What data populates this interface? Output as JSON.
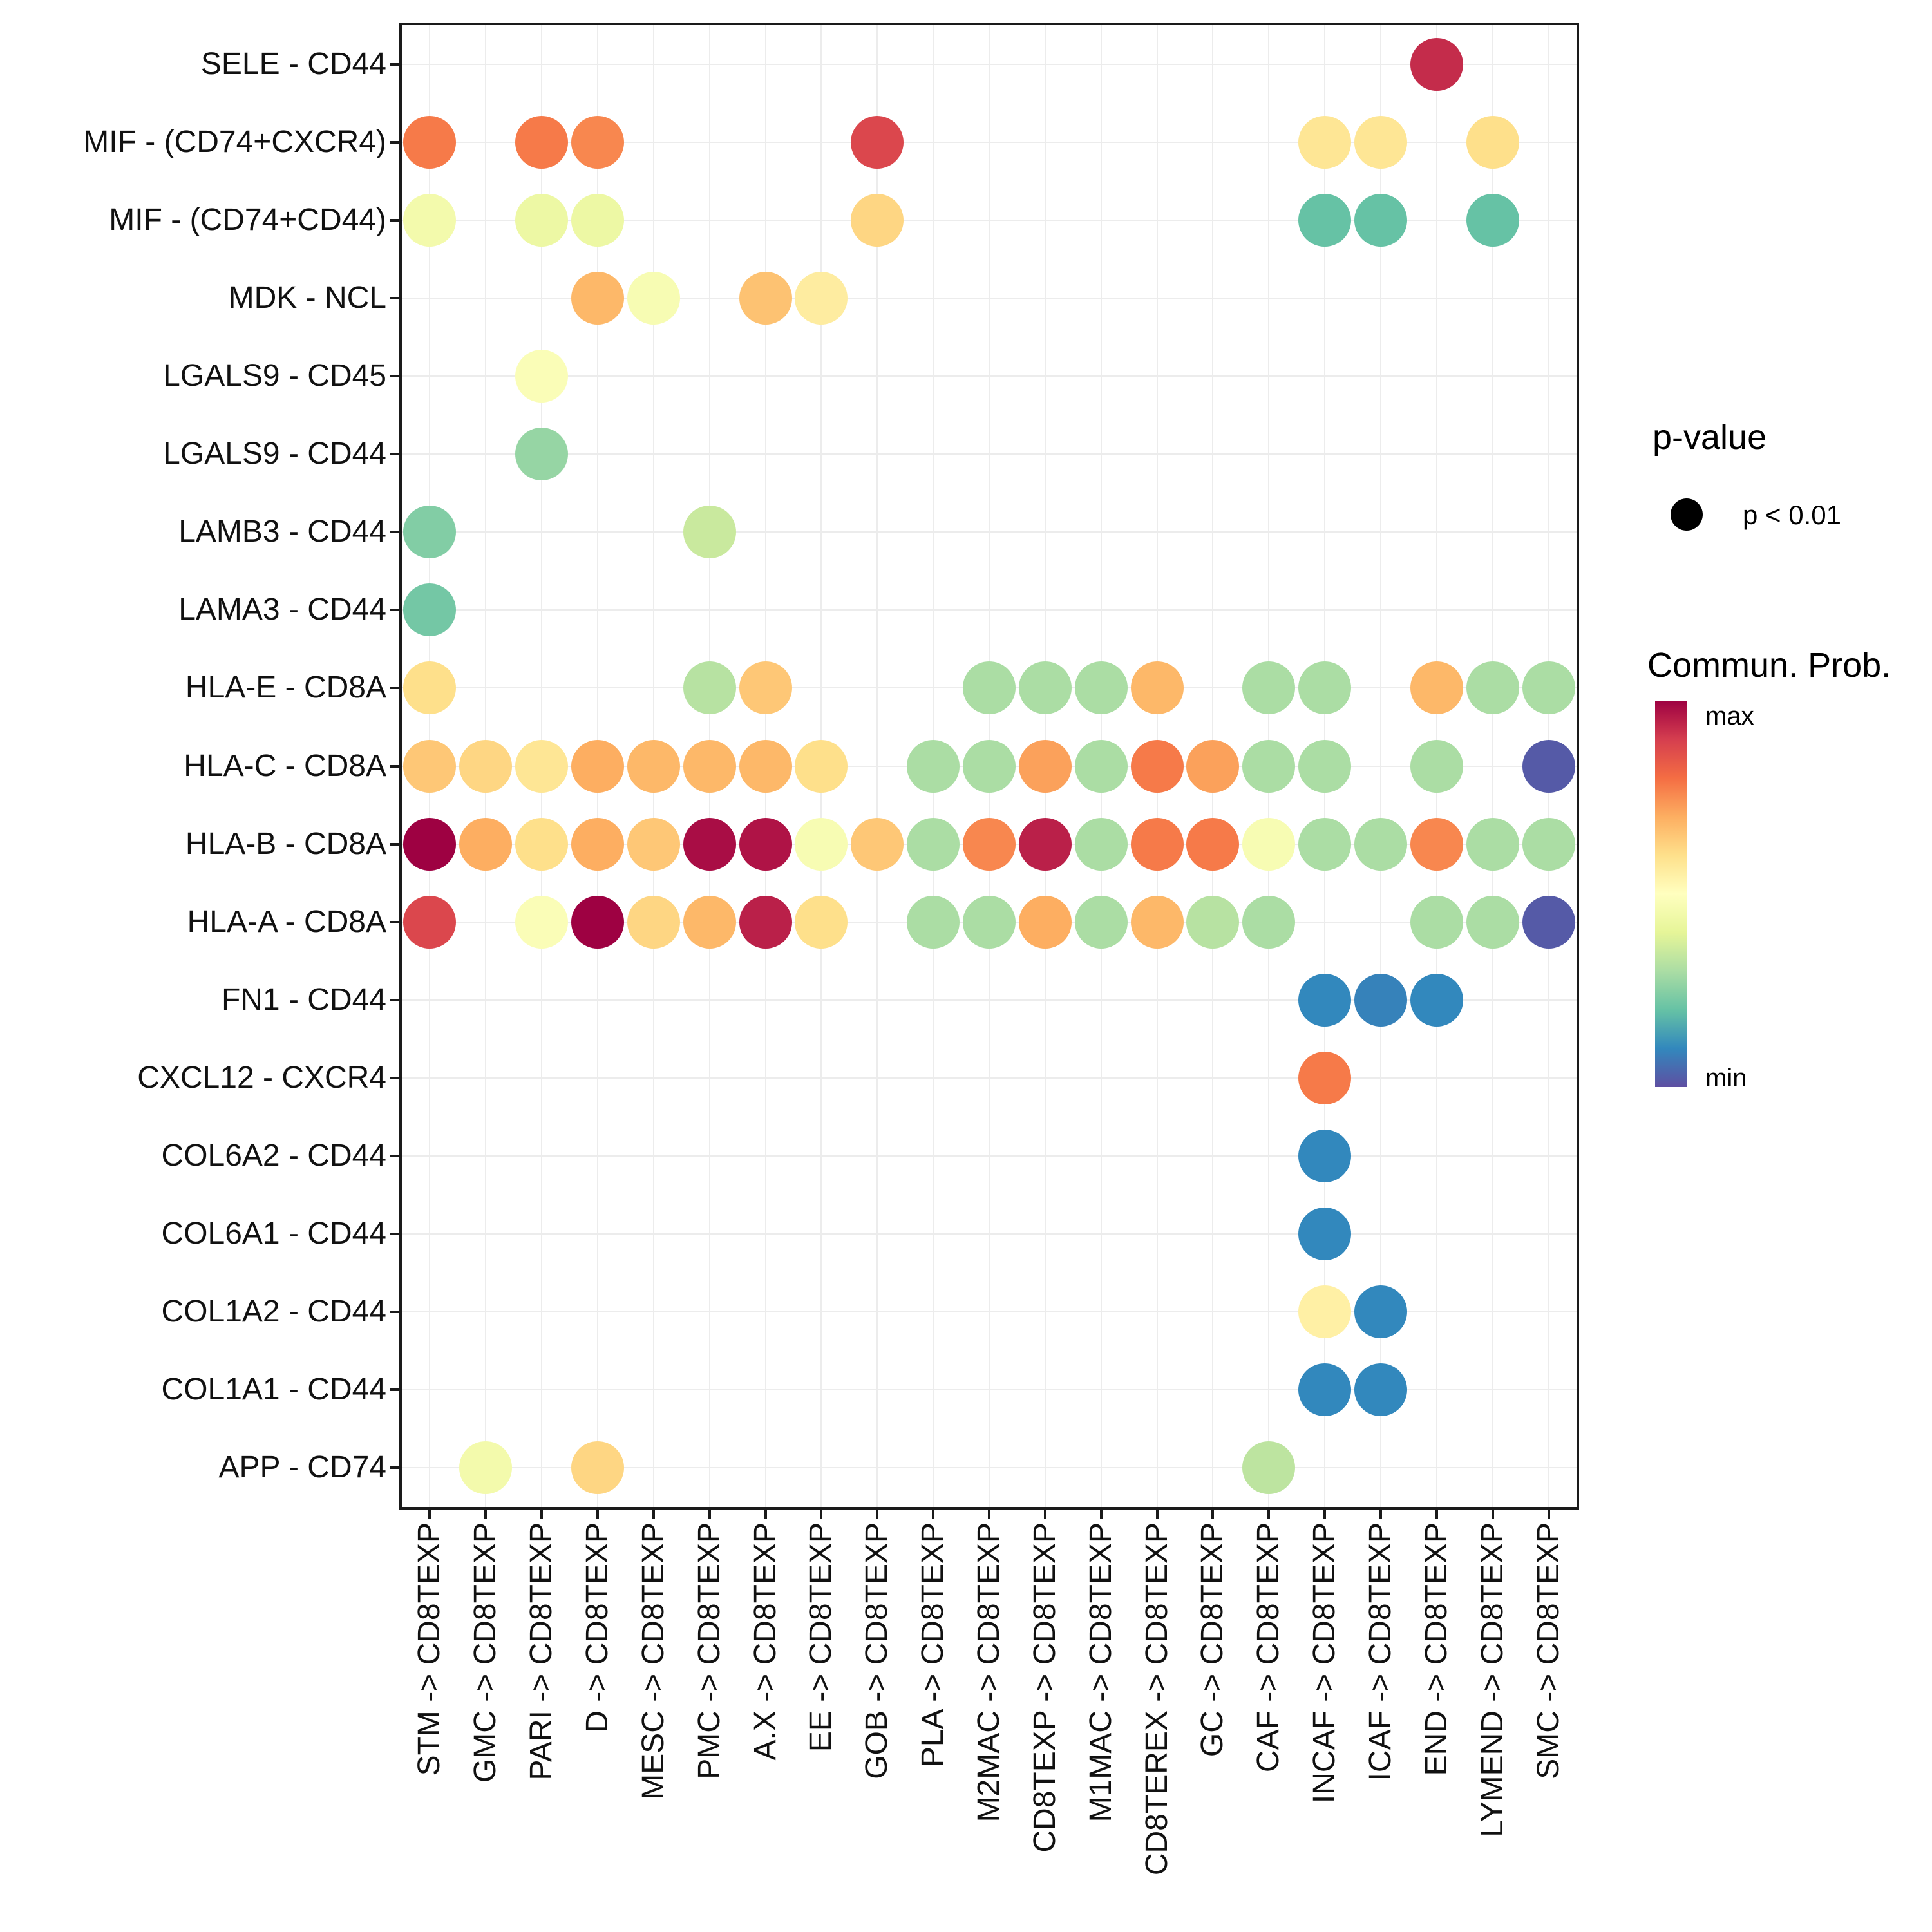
{
  "chart_data": {
    "type": "scatter",
    "subtype": "dot-plot-cell-communication",
    "title": "",
    "xlabel": "",
    "ylabel": "",
    "grid": true,
    "legend_position": "right",
    "x_categories": [
      "STM -> CD8TEXP",
      "GMC -> CD8TEXP",
      "PARI -> CD8TEXP",
      "D -> CD8TEXP",
      "MESC -> CD8TEXP",
      "PMC -> CD8TEXP",
      "A.X -> CD8TEXP",
      "EE -> CD8TEXP",
      "GOB -> CD8TEXP",
      "PLA -> CD8TEXP",
      "M2MAC -> CD8TEXP",
      "CD8TEXP -> CD8TEXP",
      "M1MAC -> CD8TEXP",
      "CD8TEREX -> CD8TEXP",
      "GC -> CD8TEXP",
      "CAF -> CD8TEXP",
      "INCAF -> CD8TEXP",
      "ICAF -> CD8TEXP",
      "END -> CD8TEXP",
      "LYMEND -> CD8TEXP",
      "SMC -> CD8TEXP"
    ],
    "y_categories": [
      "SELE - CD44",
      "MIF - (CD74+CXCR4)",
      "MIF - (CD74+CD44)",
      "MDK - NCL",
      "LGALS9 - CD45",
      "LGALS9 - CD44",
      "LAMB3 - CD44",
      "LAMA3 - CD44",
      "HLA-E - CD8A",
      "HLA-C - CD8A",
      "HLA-B - CD8A",
      "HLA-A - CD8A",
      "FN1 - CD44",
      "CXCL12 - CXCR4",
      "COL6A2 - CD44",
      "COL6A1 - CD44",
      "COL1A2 - CD44",
      "COL1A1 - CD44",
      "APP - CD74"
    ],
    "points_format": "[y_index_from_top, x_index_from_left, commun_prob_normalized_0min_1max]",
    "all_points_pvalue": "p < 0.01",
    "points": [
      [
        0,
        18,
        0.93
      ],
      [
        1,
        0,
        0.78
      ],
      [
        1,
        2,
        0.78
      ],
      [
        1,
        3,
        0.76
      ],
      [
        1,
        8,
        0.88
      ],
      [
        1,
        16,
        0.58
      ],
      [
        1,
        17,
        0.58
      ],
      [
        1,
        19,
        0.6
      ],
      [
        2,
        0,
        0.45
      ],
      [
        2,
        2,
        0.43
      ],
      [
        2,
        3,
        0.43
      ],
      [
        2,
        8,
        0.62
      ],
      [
        2,
        16,
        0.2
      ],
      [
        2,
        17,
        0.2
      ],
      [
        2,
        19,
        0.2
      ],
      [
        3,
        3,
        0.68
      ],
      [
        3,
        4,
        0.47
      ],
      [
        3,
        6,
        0.66
      ],
      [
        3,
        7,
        0.56
      ],
      [
        4,
        2,
        0.48
      ],
      [
        5,
        2,
        0.27
      ],
      [
        6,
        0,
        0.24
      ],
      [
        6,
        5,
        0.35
      ],
      [
        7,
        0,
        0.22
      ],
      [
        8,
        0,
        0.6
      ],
      [
        8,
        5,
        0.32
      ],
      [
        8,
        6,
        0.65
      ],
      [
        8,
        10,
        0.3
      ],
      [
        8,
        11,
        0.3
      ],
      [
        8,
        12,
        0.3
      ],
      [
        8,
        13,
        0.68
      ],
      [
        8,
        15,
        0.3
      ],
      [
        8,
        16,
        0.3
      ],
      [
        8,
        18,
        0.68
      ],
      [
        8,
        19,
        0.3
      ],
      [
        8,
        20,
        0.3
      ],
      [
        9,
        0,
        0.65
      ],
      [
        9,
        1,
        0.62
      ],
      [
        9,
        2,
        0.58
      ],
      [
        9,
        3,
        0.7
      ],
      [
        9,
        4,
        0.68
      ],
      [
        9,
        5,
        0.68
      ],
      [
        9,
        6,
        0.68
      ],
      [
        9,
        7,
        0.6
      ],
      [
        9,
        9,
        0.3
      ],
      [
        9,
        10,
        0.3
      ],
      [
        9,
        11,
        0.72
      ],
      [
        9,
        12,
        0.3
      ],
      [
        9,
        13,
        0.78
      ],
      [
        9,
        14,
        0.72
      ],
      [
        9,
        15,
        0.3
      ],
      [
        9,
        16,
        0.3
      ],
      [
        9,
        18,
        0.3
      ],
      [
        9,
        20,
        0.02
      ],
      [
        10,
        0,
        1.0
      ],
      [
        10,
        1,
        0.7
      ],
      [
        10,
        2,
        0.6
      ],
      [
        10,
        3,
        0.7
      ],
      [
        10,
        4,
        0.65
      ],
      [
        10,
        5,
        0.98
      ],
      [
        10,
        6,
        0.97
      ],
      [
        10,
        7,
        0.47
      ],
      [
        10,
        8,
        0.65
      ],
      [
        10,
        9,
        0.3
      ],
      [
        10,
        10,
        0.76
      ],
      [
        10,
        11,
        0.95
      ],
      [
        10,
        12,
        0.3
      ],
      [
        10,
        13,
        0.78
      ],
      [
        10,
        14,
        0.78
      ],
      [
        10,
        15,
        0.47
      ],
      [
        10,
        16,
        0.3
      ],
      [
        10,
        17,
        0.3
      ],
      [
        10,
        18,
        0.76
      ],
      [
        10,
        19,
        0.3
      ],
      [
        10,
        20,
        0.3
      ],
      [
        11,
        0,
        0.88
      ],
      [
        11,
        2,
        0.48
      ],
      [
        11,
        3,
        1.0
      ],
      [
        11,
        4,
        0.62
      ],
      [
        11,
        5,
        0.68
      ],
      [
        11,
        6,
        0.95
      ],
      [
        11,
        7,
        0.6
      ],
      [
        11,
        9,
        0.3
      ],
      [
        11,
        10,
        0.3
      ],
      [
        11,
        11,
        0.7
      ],
      [
        11,
        12,
        0.3
      ],
      [
        11,
        13,
        0.68
      ],
      [
        11,
        14,
        0.32
      ],
      [
        11,
        15,
        0.3
      ],
      [
        11,
        18,
        0.3
      ],
      [
        11,
        19,
        0.3
      ],
      [
        11,
        20,
        0.02
      ],
      [
        12,
        16,
        0.1
      ],
      [
        12,
        17,
        0.09
      ],
      [
        12,
        18,
        0.1
      ],
      [
        13,
        16,
        0.78
      ],
      [
        14,
        16,
        0.1
      ],
      [
        15,
        16,
        0.1
      ],
      [
        16,
        16,
        0.55
      ],
      [
        16,
        17,
        0.1
      ],
      [
        17,
        16,
        0.1
      ],
      [
        17,
        17,
        0.1
      ],
      [
        18,
        1,
        0.45
      ],
      [
        18,
        3,
        0.62
      ],
      [
        18,
        15,
        0.33
      ]
    ],
    "colormap_max_to_min": [
      "#9E0142",
      "#D53E4F",
      "#F46D43",
      "#FDAE61",
      "#FEE08B",
      "#FFFFBF",
      "#E6F598",
      "#ABDDA4",
      "#66C2A5",
      "#3288BD",
      "#5E4FA2"
    ],
    "legend": {
      "pvalue_title": "p-value",
      "pvalue_label": "p < 0.01",
      "colorbar_title": "Commun. Prob.",
      "max_label": "max",
      "min_label": "min"
    }
  }
}
